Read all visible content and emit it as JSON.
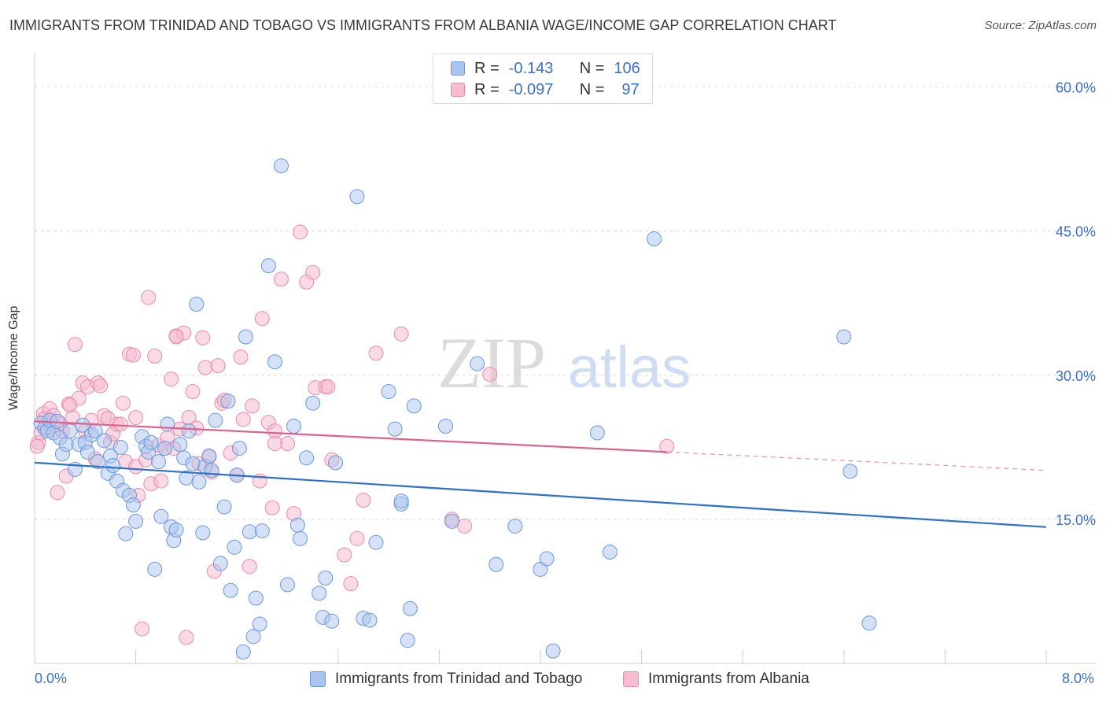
{
  "title": "IMMIGRANTS FROM TRINIDAD AND TOBAGO VS IMMIGRANTS FROM ALBANIA WAGE/INCOME GAP CORRELATION CHART",
  "source": "Source: ZipAtlas.com",
  "watermark": {
    "zip": "ZIP",
    "atlas": "atlas"
  },
  "legend": {
    "r_label": "R =",
    "n_label": "N =",
    "rows": [
      {
        "r": "-0.143",
        "n": "106"
      },
      {
        "r": "-0.097",
        "n": "97"
      }
    ]
  },
  "colors": {
    "blue_fill": "#a9c4ee",
    "blue_stroke": "#6b98db",
    "blue_line": "#2b6fd0",
    "pink_fill": "#f6bcd0",
    "pink_stroke": "#e98aab",
    "pink_line": "#e05f8c",
    "axis_text": "#3a6fc8",
    "grid": "#dddddd"
  },
  "chart_data": {
    "type": "scatter",
    "title": "IMMIGRANTS FROM TRINIDAD AND TOBAGO VS IMMIGRANTS FROM ALBANIA WAGE/INCOME GAP CORRELATION CHART",
    "xlabel": "",
    "ylabel": "Wage/Income Gap",
    "xlim": [
      0,
      8
    ],
    "ylim": [
      0,
      63
    ],
    "x_tick_labels": [
      "0.0%",
      "8.0%"
    ],
    "y_ticks": [
      15,
      30,
      45,
      60
    ],
    "y_tick_labels": [
      "15.0%",
      "30.0%",
      "45.0%",
      "60.0%"
    ],
    "grid": true,
    "legend_position": "top-center",
    "series": [
      {
        "name": "Immigrants from Trinidad and Tobago",
        "r": -0.143,
        "n": 106,
        "trend": {
          "x": [
            0,
            8
          ],
          "y": [
            20.9,
            14.2
          ],
          "dashed_from": null
        },
        "points": [
          [
            0.05,
            25
          ],
          [
            0.08,
            24.5
          ],
          [
            0.1,
            24.2
          ],
          [
            0.12,
            25.3
          ],
          [
            0.15,
            24
          ],
          [
            0.18,
            25.2
          ],
          [
            0.2,
            23.5
          ],
          [
            0.22,
            21.8
          ],
          [
            0.25,
            22.8
          ],
          [
            0.28,
            24.2
          ],
          [
            0.32,
            20.2
          ],
          [
            0.35,
            22.8
          ],
          [
            0.38,
            24.8
          ],
          [
            0.4,
            23
          ],
          [
            0.42,
            22
          ],
          [
            0.45,
            23.8
          ],
          [
            0.48,
            24.2
          ],
          [
            0.5,
            21
          ],
          [
            0.55,
            23.2
          ],
          [
            0.58,
            19.8
          ],
          [
            0.6,
            21.6
          ],
          [
            0.62,
            20.6
          ],
          [
            0.65,
            19
          ],
          [
            0.68,
            22.5
          ],
          [
            0.7,
            18
          ],
          [
            0.72,
            13.5
          ],
          [
            0.75,
            17.5
          ],
          [
            0.78,
            16.5
          ],
          [
            0.8,
            14.8
          ],
          [
            0.85,
            23.6
          ],
          [
            0.88,
            22.6
          ],
          [
            0.9,
            22
          ],
          [
            0.92,
            23
          ],
          [
            0.95,
            9.8
          ],
          [
            0.98,
            21
          ],
          [
            1.0,
            15.3
          ],
          [
            1.03,
            22.4
          ],
          [
            1.05,
            24.9
          ],
          [
            1.08,
            14.2
          ],
          [
            1.1,
            12.8
          ],
          [
            1.12,
            13.9
          ],
          [
            1.15,
            22.8
          ],
          [
            1.18,
            21.4
          ],
          [
            1.2,
            19.3
          ],
          [
            1.22,
            24.2
          ],
          [
            1.25,
            20.8
          ],
          [
            1.28,
            37.4
          ],
          [
            1.3,
            18.9
          ],
          [
            1.33,
            13.6
          ],
          [
            1.35,
            20.5
          ],
          [
            1.38,
            21.6
          ],
          [
            1.4,
            20.1
          ],
          [
            1.43,
            25.3
          ],
          [
            1.47,
            10.4
          ],
          [
            1.5,
            16.3
          ],
          [
            1.53,
            27.3
          ],
          [
            1.55,
            7.6
          ],
          [
            1.58,
            12.1
          ],
          [
            1.6,
            19.6
          ],
          [
            1.62,
            22.4
          ],
          [
            1.65,
            1.2
          ],
          [
            1.67,
            34
          ],
          [
            1.7,
            13.7
          ],
          [
            1.73,
            2.8
          ],
          [
            1.75,
            6.8
          ],
          [
            1.78,
            4.1
          ],
          [
            1.8,
            13.8
          ],
          [
            1.85,
            41.4
          ],
          [
            1.9,
            31.4
          ],
          [
            1.95,
            51.8
          ],
          [
            2.0,
            8.2
          ],
          [
            2.05,
            24.7
          ],
          [
            2.08,
            14.4
          ],
          [
            2.1,
            13
          ],
          [
            2.15,
            21.4
          ],
          [
            2.2,
            27.1
          ],
          [
            2.25,
            7.3
          ],
          [
            2.28,
            4.8
          ],
          [
            2.3,
            8.9
          ],
          [
            2.35,
            4.4
          ],
          [
            2.38,
            20.9
          ],
          [
            2.55,
            48.6
          ],
          [
            2.6,
            4.7
          ],
          [
            2.65,
            4.5
          ],
          [
            2.7,
            12.6
          ],
          [
            2.8,
            28.3
          ],
          [
            2.85,
            24.4
          ],
          [
            2.9,
            16.6
          ],
          [
            2.9,
            16.9
          ],
          [
            2.95,
            2.4
          ],
          [
            2.97,
            5.7
          ],
          [
            3.0,
            26.8
          ],
          [
            3.25,
            24.7
          ],
          [
            3.3,
            14.8
          ],
          [
            3.5,
            31.2
          ],
          [
            3.65,
            10.3
          ],
          [
            3.8,
            14.3
          ],
          [
            4.0,
            9.8
          ],
          [
            4.05,
            10.9
          ],
          [
            4.1,
            1.3
          ],
          [
            4.45,
            24
          ],
          [
            4.55,
            11.6
          ],
          [
            4.9,
            44.2
          ],
          [
            6.4,
            34
          ],
          [
            6.45,
            20
          ],
          [
            6.6,
            4.2
          ]
        ]
      },
      {
        "name": "Immigrants from Albania",
        "r": -0.097,
        "n": 97,
        "trend": {
          "x": [
            0,
            8
          ],
          "y": [
            25.2,
            20.1
          ],
          "dashed_from": 5.0
        },
        "points": [
          [
            0.03,
            23
          ],
          [
            0.05,
            24
          ],
          [
            0.07,
            26
          ],
          [
            0.08,
            25.5
          ],
          [
            0.1,
            24.5
          ],
          [
            0.12,
            26.5
          ],
          [
            0.15,
            25.8
          ],
          [
            0.18,
            17.8
          ],
          [
            0.2,
            25
          ],
          [
            0.22,
            24.2
          ],
          [
            0.25,
            19.5
          ],
          [
            0.27,
            27
          ],
          [
            0.3,
            25.6
          ],
          [
            0.32,
            33.2
          ],
          [
            0.35,
            27.6
          ],
          [
            0.38,
            29.2
          ],
          [
            0.4,
            24.2
          ],
          [
            0.42,
            28.8
          ],
          [
            0.45,
            25.3
          ],
          [
            0.48,
            21.3
          ],
          [
            0.5,
            29.2
          ],
          [
            0.52,
            28.9
          ],
          [
            0.55,
            25.8
          ],
          [
            0.58,
            25.5
          ],
          [
            0.6,
            23
          ],
          [
            0.62,
            23.9
          ],
          [
            0.65,
            24.9
          ],
          [
            0.68,
            24.9
          ],
          [
            0.7,
            27.1
          ],
          [
            0.72,
            21
          ],
          [
            0.75,
            32.2
          ],
          [
            0.78,
            32.1
          ],
          [
            0.8,
            20.5
          ],
          [
            0.82,
            17.5
          ],
          [
            0.85,
            3.6
          ],
          [
            0.88,
            21.2
          ],
          [
            0.9,
            38.1
          ],
          [
            0.92,
            18.7
          ],
          [
            0.95,
            32
          ],
          [
            0.98,
            22.7
          ],
          [
            1.0,
            19
          ],
          [
            1.03,
            22.4
          ],
          [
            1.05,
            23.5
          ],
          [
            1.08,
            29.6
          ],
          [
            1.1,
            22.4
          ],
          [
            1.12,
            34.1
          ],
          [
            1.15,
            24.4
          ],
          [
            1.18,
            34.4
          ],
          [
            1.2,
            2.7
          ],
          [
            1.22,
            25.6
          ],
          [
            1.25,
            28.3
          ],
          [
            1.28,
            24.5
          ],
          [
            1.3,
            20.8
          ],
          [
            1.33,
            33.9
          ],
          [
            1.35,
            30.8
          ],
          [
            1.38,
            21.5
          ],
          [
            1.4,
            19.9
          ],
          [
            1.42,
            9.6
          ],
          [
            1.45,
            31.0
          ],
          [
            1.48,
            27.1
          ],
          [
            1.5,
            27.4
          ],
          [
            1.55,
            21.9
          ],
          [
            1.6,
            19.6
          ],
          [
            1.63,
            31.9
          ],
          [
            1.65,
            25.4
          ],
          [
            1.7,
            10.1
          ],
          [
            1.72,
            26.8
          ],
          [
            1.78,
            19
          ],
          [
            1.8,
            35.9
          ],
          [
            1.85,
            25.1
          ],
          [
            1.88,
            16.2
          ],
          [
            1.9,
            24.2
          ],
          [
            1.95,
            40
          ],
          [
            2.0,
            22.9
          ],
          [
            2.05,
            15.6
          ],
          [
            2.1,
            44.9
          ],
          [
            2.15,
            39.7
          ],
          [
            2.2,
            40.7
          ],
          [
            2.22,
            28.7
          ],
          [
            2.3,
            28.8
          ],
          [
            2.35,
            21.2
          ],
          [
            2.45,
            11.3
          ],
          [
            2.5,
            8.3
          ],
          [
            2.55,
            13
          ],
          [
            2.6,
            17
          ],
          [
            2.7,
            32.3
          ],
          [
            2.9,
            34.3
          ],
          [
            3.3,
            15
          ],
          [
            3.4,
            14.3
          ],
          [
            3.6,
            30.1
          ],
          [
            5.0,
            22.6
          ],
          [
            0.02,
            22.6
          ],
          [
            1.12,
            34
          ],
          [
            0.28,
            26.9
          ],
          [
            2.32,
            28.8
          ],
          [
            0.8,
            25.6
          ],
          [
            1.9,
            22.9
          ]
        ]
      }
    ]
  }
}
